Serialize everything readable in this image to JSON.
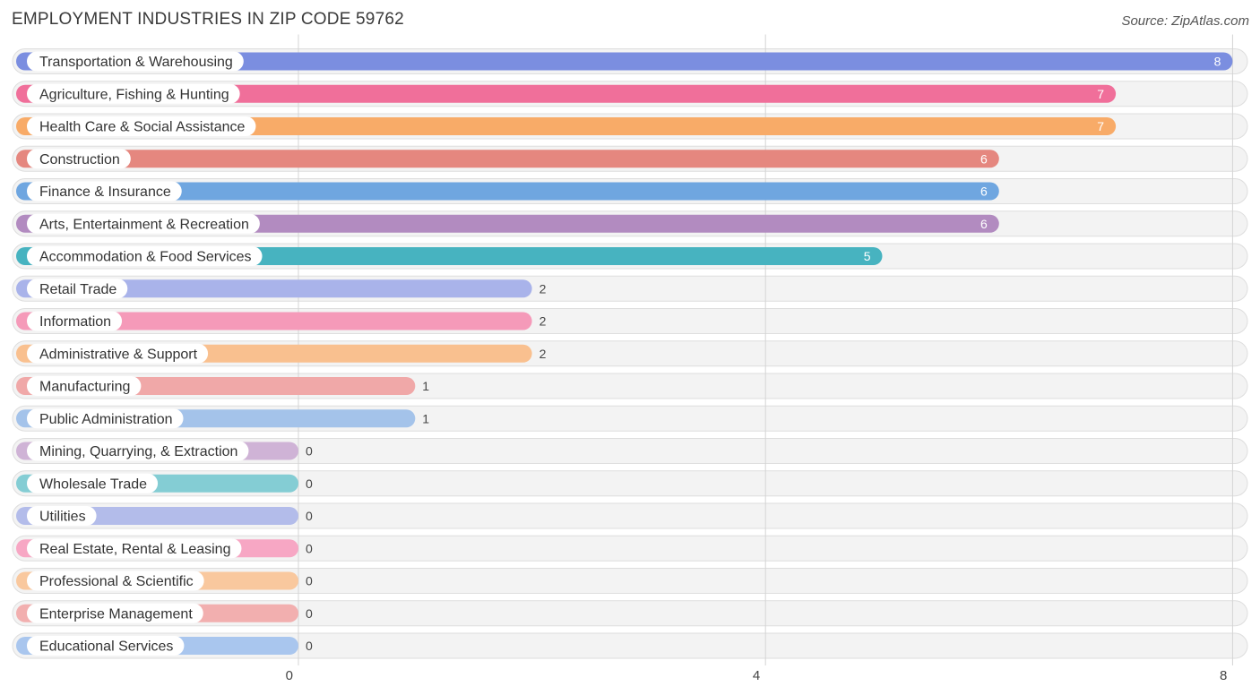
{
  "header": {
    "title": "EMPLOYMENT INDUSTRIES IN ZIP CODE 59762",
    "source": "Source: ZipAtlas.com"
  },
  "chart_data": {
    "type": "bar",
    "orientation": "horizontal",
    "categories": [
      "Transportation & Warehousing",
      "Agriculture, Fishing & Hunting",
      "Health Care & Social Assistance",
      "Construction",
      "Finance & Insurance",
      "Arts, Entertainment & Recreation",
      "Accommodation & Food Services",
      "Retail Trade",
      "Information",
      "Administrative & Support",
      "Manufacturing",
      "Public Administration",
      "Mining, Quarrying, & Extraction",
      "Wholesale Trade",
      "Utilities",
      "Real Estate, Rental & Leasing",
      "Professional & Scientific",
      "Enterprise Management",
      "Educational Services"
    ],
    "values": [
      8,
      7,
      7,
      6,
      6,
      6,
      5,
      2,
      2,
      2,
      1,
      1,
      0,
      0,
      0,
      0,
      0,
      0,
      0
    ],
    "colors": [
      "#7b8ee0",
      "#f06f9a",
      "#f8ab68",
      "#e5877f",
      "#6fa6e0",
      "#b28bc0",
      "#47b3c0",
      "#a9b3ea",
      "#f59ab9",
      "#f9c08f",
      "#f0a8a8",
      "#a4c3ea",
      "#cfb3d6",
      "#84cdd4",
      "#b3bcea",
      "#f7a7c4",
      "#f9c89e",
      "#f2afaf",
      "#a9c6ee"
    ],
    "xlim": [
      0,
      8
    ],
    "xticks": [
      0,
      4,
      8
    ],
    "grid": true,
    "value_labels": true
  }
}
